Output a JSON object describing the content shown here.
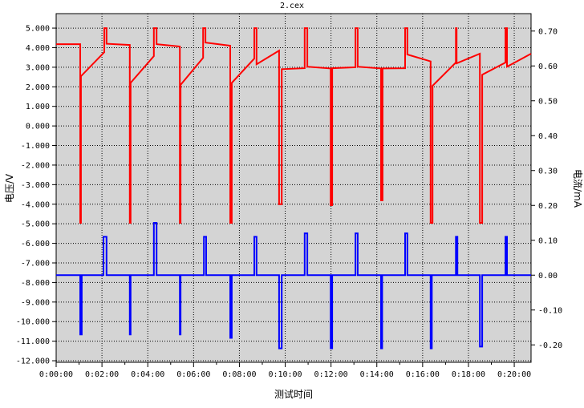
{
  "chart_data": {
    "type": "line",
    "title": "2.cex",
    "xlabel": "测试时间",
    "ylabel": "电压/V",
    "y2label": "电流/mA",
    "xlim": [
      "0:00:00",
      "0:20:44"
    ],
    "ylim": [
      -12.08,
      5.74
    ],
    "y2lim": [
      -0.25,
      0.75
    ],
    "grid": true,
    "background_color": "#d4d4d4",
    "x_ticks": [
      "0:00:00",
      "0:02:00",
      "0:04:00",
      "0:06:00",
      "0:08:00",
      "0:10:00",
      "0:12:00",
      "0:14:00",
      "0:16:00",
      "0:18:00",
      "0:20:00"
    ],
    "y_ticks": [
      "5.000",
      "4.000",
      "3.000",
      "2.000",
      "1.000",
      "0.000",
      "-1.000",
      "-2.000",
      "-3.000",
      "-4.000",
      "-5.000",
      "-6.000",
      "-7.000",
      "-8.000",
      "-9.000",
      "-10.000",
      "-11.000",
      "-12.000"
    ],
    "y2_ticks": [
      "0.70",
      "0.60",
      "0.50",
      "0.40",
      "0.30",
      "0.20",
      "0.10",
      "0.00",
      "-0.10",
      "-0.20"
    ],
    "series": [
      {
        "axis": "left",
        "color": "#ff0000",
        "points": [
          [
            "0:00:00",
            4.18
          ],
          [
            "0:01:03",
            4.18
          ],
          [
            "0:01:03",
            -4.95
          ],
          [
            "0:01:05",
            -4.95
          ],
          [
            "0:01:05",
            2.54
          ],
          [
            "0:02:06",
            3.77
          ],
          [
            "0:02:06",
            5.0
          ],
          [
            "0:02:12",
            5.0
          ],
          [
            "0:02:12",
            4.2
          ],
          [
            "0:03:13",
            4.14
          ],
          [
            "0:03:13",
            -4.95
          ],
          [
            "0:03:15",
            -4.95
          ],
          [
            "0:03:15",
            2.2
          ],
          [
            "0:04:16",
            3.57
          ],
          [
            "0:04:16",
            5.0
          ],
          [
            "0:04:23",
            5.0
          ],
          [
            "0:04:23",
            4.18
          ],
          [
            "0:05:24",
            4.06
          ],
          [
            "0:05:24",
            -4.95
          ],
          [
            "0:05:26",
            -4.95
          ],
          [
            "0:05:26",
            2.1
          ],
          [
            "0:06:25",
            3.48
          ],
          [
            "0:06:25",
            5.0
          ],
          [
            "0:06:31",
            5.0
          ],
          [
            "0:06:31",
            4.26
          ],
          [
            "0:07:36",
            4.1
          ],
          [
            "0:07:36",
            -4.95
          ],
          [
            "0:07:40",
            -4.95
          ],
          [
            "0:07:40",
            2.2
          ],
          [
            "0:08:39",
            3.44
          ],
          [
            "0:08:39",
            5.0
          ],
          [
            "0:08:45",
            5.0
          ],
          [
            "0:08:45",
            3.15
          ],
          [
            "0:09:44",
            3.85
          ],
          [
            "0:09:44",
            -4.0
          ],
          [
            "0:09:51",
            -4.0
          ],
          [
            "0:09:51",
            2.9
          ],
          [
            "0:10:51",
            2.95
          ],
          [
            "0:10:51",
            5.0
          ],
          [
            "0:10:58",
            5.0
          ],
          [
            "0:10:58",
            3.03
          ],
          [
            "0:11:59",
            2.94
          ],
          [
            "0:11:59",
            -4.05
          ],
          [
            "0:12:03",
            -4.05
          ],
          [
            "0:12:03",
            2.95
          ],
          [
            "0:13:04",
            3.0
          ],
          [
            "0:13:04",
            5.0
          ],
          [
            "0:13:10",
            5.0
          ],
          [
            "0:13:10",
            3.03
          ],
          [
            "0:14:11",
            2.94
          ],
          [
            "0:14:11",
            -3.8
          ],
          [
            "0:14:15",
            -3.8
          ],
          [
            "0:14:15",
            2.94
          ],
          [
            "0:15:14",
            2.95
          ],
          [
            "0:15:14",
            5.0
          ],
          [
            "0:15:20",
            5.0
          ],
          [
            "0:15:20",
            3.65
          ],
          [
            "0:16:21",
            3.3
          ],
          [
            "0:16:21",
            -4.95
          ],
          [
            "0:16:26",
            -4.95
          ],
          [
            "0:16:26",
            2.05
          ],
          [
            "0:17:27",
            3.24
          ],
          [
            "0:17:27",
            5.0
          ],
          [
            "0:17:29",
            5.0
          ],
          [
            "0:17:29",
            3.2
          ],
          [
            "0:18:30",
            3.69
          ],
          [
            "0:18:30",
            -4.95
          ],
          [
            "0:18:36",
            -4.95
          ],
          [
            "0:18:36",
            2.62
          ],
          [
            "0:19:37",
            3.24
          ],
          [
            "0:19:37",
            5.0
          ],
          [
            "0:19:41",
            5.0
          ],
          [
            "0:19:41",
            3.03
          ],
          [
            "0:20:44",
            3.69
          ]
        ]
      },
      {
        "axis": "right",
        "color": "#0000ff",
        "points": [
          [
            "0:00:00",
            0
          ],
          [
            "0:01:03",
            0
          ],
          [
            "0:01:03",
            -0.17
          ],
          [
            "0:01:07",
            -0.17
          ],
          [
            "0:01:07",
            0
          ],
          [
            "0:02:04",
            0
          ],
          [
            "0:02:04",
            0.11
          ],
          [
            "0:02:12",
            0.11
          ],
          [
            "0:02:12",
            0
          ],
          [
            "0:03:13",
            0
          ],
          [
            "0:03:13",
            -0.17
          ],
          [
            "0:03:15",
            -0.17
          ],
          [
            "0:03:15",
            0
          ],
          [
            "0:04:16",
            0
          ],
          [
            "0:04:16",
            0.15
          ],
          [
            "0:04:23",
            0.15
          ],
          [
            "0:04:23",
            0
          ],
          [
            "0:05:24",
            0
          ],
          [
            "0:05:24",
            -0.17
          ],
          [
            "0:05:26",
            -0.17
          ],
          [
            "0:05:26",
            0
          ],
          [
            "0:06:27",
            0
          ],
          [
            "0:06:27",
            0.11
          ],
          [
            "0:06:33",
            0.11
          ],
          [
            "0:06:33",
            0
          ],
          [
            "0:07:36",
            0
          ],
          [
            "0:07:36",
            -0.18
          ],
          [
            "0:07:40",
            -0.18
          ],
          [
            "0:07:40",
            0
          ],
          [
            "0:08:39",
            0
          ],
          [
            "0:08:39",
            0.11
          ],
          [
            "0:08:45",
            0.11
          ],
          [
            "0:08:45",
            0
          ],
          [
            "0:09:44",
            0
          ],
          [
            "0:09:44",
            -0.21
          ],
          [
            "0:09:51",
            -0.21
          ],
          [
            "0:09:51",
            0
          ],
          [
            "0:10:51",
            0
          ],
          [
            "0:10:51",
            0.12
          ],
          [
            "0:10:58",
            0.12
          ],
          [
            "0:10:58",
            0
          ],
          [
            "0:11:59",
            0
          ],
          [
            "0:11:59",
            -0.21
          ],
          [
            "0:12:03",
            -0.21
          ],
          [
            "0:12:03",
            0
          ],
          [
            "0:13:04",
            0
          ],
          [
            "0:13:04",
            0.12
          ],
          [
            "0:13:10",
            0.12
          ],
          [
            "0:13:10",
            0
          ],
          [
            "0:14:11",
            0
          ],
          [
            "0:14:11",
            -0.21
          ],
          [
            "0:14:14",
            -0.21
          ],
          [
            "0:14:14",
            0
          ],
          [
            "0:15:14",
            0
          ],
          [
            "0:15:14",
            0.12
          ],
          [
            "0:15:20",
            0.12
          ],
          [
            "0:15:20",
            0
          ],
          [
            "0:16:21",
            0
          ],
          [
            "0:16:21",
            -0.21
          ],
          [
            "0:16:24",
            -0.21
          ],
          [
            "0:16:24",
            0
          ],
          [
            "0:17:27",
            0
          ],
          [
            "0:17:27",
            0.11
          ],
          [
            "0:17:31",
            0.11
          ],
          [
            "0:17:31",
            0
          ],
          [
            "0:18:30",
            0
          ],
          [
            "0:18:30",
            -0.205
          ],
          [
            "0:18:36",
            -0.205
          ],
          [
            "0:18:36",
            0
          ],
          [
            "0:19:37",
            0
          ],
          [
            "0:19:37",
            0.11
          ],
          [
            "0:19:41",
            0.11
          ],
          [
            "0:19:41",
            0
          ],
          [
            "0:20:44",
            0
          ]
        ]
      }
    ]
  }
}
